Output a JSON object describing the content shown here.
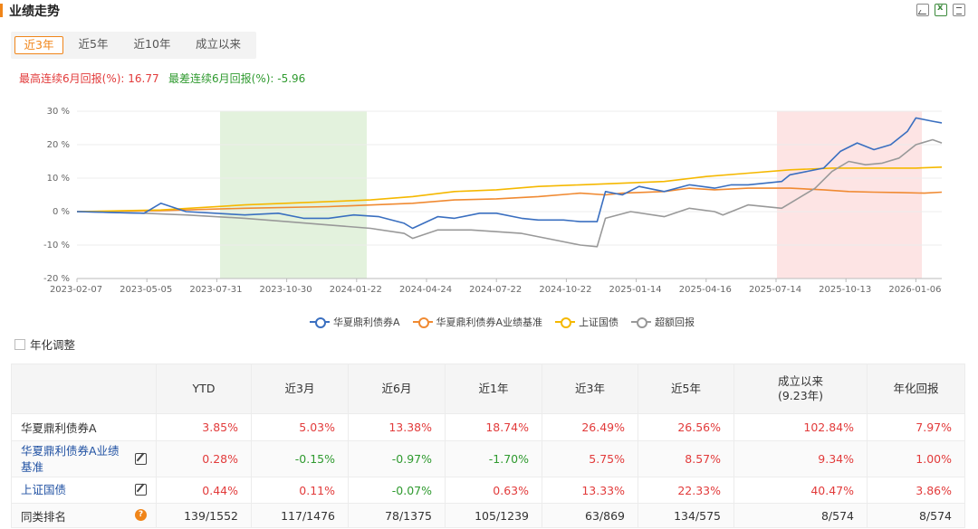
{
  "header": {
    "title": "业绩走势"
  },
  "tabs": [
    {
      "label": "近3年",
      "active": true
    },
    {
      "label": "近5年",
      "active": false
    },
    {
      "label": "近10年",
      "active": false
    },
    {
      "label": "成立以来",
      "active": false
    }
  ],
  "stats": {
    "best": "最高连续6月回报(%): 16.77",
    "worst": "最差连续6月回报(%): -5.96"
  },
  "chart_data": {
    "type": "line",
    "y_ticks": [
      "30 %",
      "20 %",
      "10 %",
      "0 %",
      "-10 %",
      "-20 %"
    ],
    "ylim": [
      -20,
      30
    ],
    "x_ticks": [
      "2023-02-07",
      "2023-05-05",
      "2023-07-31",
      "2023-10-30",
      "2024-01-22",
      "2024-04-24",
      "2024-07-22",
      "2024-10-22",
      "2025-01-14",
      "2025-04-16",
      "2025-07-14",
      "2025-10-13",
      "2026-01-06"
    ],
    "highlight_bands": [
      {
        "from": "2023-07-31",
        "to": "2024-01-22",
        "color": "#e3f2dd"
      },
      {
        "from": "2025-07-14",
        "to": "2025-12-31",
        "color": "#fde4e4"
      }
    ],
    "series": [
      {
        "name": "华夏鼎利债券A",
        "color": "#3a6fc0",
        "points": [
          [
            0,
            0
          ],
          [
            0.08,
            -0.5
          ],
          [
            0.1,
            2.5
          ],
          [
            0.13,
            0
          ],
          [
            0.2,
            -1
          ],
          [
            0.24,
            -0.5
          ],
          [
            0.27,
            -2
          ],
          [
            0.3,
            -2
          ],
          [
            0.33,
            -1
          ],
          [
            0.36,
            -1.5
          ],
          [
            0.39,
            -3.5
          ],
          [
            0.4,
            -5
          ],
          [
            0.43,
            -1.5
          ],
          [
            0.45,
            -2
          ],
          [
            0.48,
            -0.5
          ],
          [
            0.5,
            -0.5
          ],
          [
            0.53,
            -2
          ],
          [
            0.55,
            -2.5
          ],
          [
            0.58,
            -2.5
          ],
          [
            0.6,
            -3
          ],
          [
            0.62,
            -3
          ],
          [
            0.63,
            6
          ],
          [
            0.65,
            5
          ],
          [
            0.67,
            7.5
          ],
          [
            0.7,
            6
          ],
          [
            0.73,
            8
          ],
          [
            0.76,
            7
          ],
          [
            0.78,
            8
          ],
          [
            0.8,
            8
          ],
          [
            0.82,
            8.5
          ],
          [
            0.84,
            9
          ],
          [
            0.85,
            11
          ],
          [
            0.87,
            12
          ],
          [
            0.89,
            13
          ],
          [
            0.91,
            18
          ],
          [
            0.93,
            20.5
          ],
          [
            0.95,
            18.5
          ],
          [
            0.97,
            20
          ],
          [
            0.99,
            24
          ],
          [
            1.0,
            28
          ],
          [
            1.02,
            27
          ],
          [
            1.04,
            26.5
          ]
        ]
      },
      {
        "name": "华夏鼎利债券A业绩基准",
        "color": "#f08a32",
        "points": [
          [
            0,
            0
          ],
          [
            0.1,
            0.3
          ],
          [
            0.2,
            1
          ],
          [
            0.3,
            1.5
          ],
          [
            0.4,
            2.5
          ],
          [
            0.45,
            3.5
          ],
          [
            0.5,
            3.8
          ],
          [
            0.55,
            4.5
          ],
          [
            0.6,
            5.5
          ],
          [
            0.63,
            5
          ],
          [
            0.65,
            5.5
          ],
          [
            0.7,
            6
          ],
          [
            0.73,
            7
          ],
          [
            0.76,
            6.5
          ],
          [
            0.8,
            7
          ],
          [
            0.85,
            7
          ],
          [
            0.89,
            6.5
          ],
          [
            0.92,
            6
          ],
          [
            0.95,
            5.8
          ],
          [
            0.98,
            5.7
          ],
          [
            1.01,
            5.5
          ],
          [
            1.04,
            5.8
          ]
        ]
      },
      {
        "name": "上证国债",
        "color": "#f5b800",
        "points": [
          [
            0,
            0
          ],
          [
            0.1,
            0.5
          ],
          [
            0.2,
            2
          ],
          [
            0.3,
            3
          ],
          [
            0.35,
            3.5
          ],
          [
            0.4,
            4.5
          ],
          [
            0.45,
            6
          ],
          [
            0.5,
            6.5
          ],
          [
            0.55,
            7.5
          ],
          [
            0.6,
            8
          ],
          [
            0.65,
            8.5
          ],
          [
            0.7,
            9
          ],
          [
            0.75,
            10.5
          ],
          [
            0.8,
            11.5
          ],
          [
            0.85,
            12.5
          ],
          [
            0.9,
            13
          ],
          [
            0.95,
            13
          ],
          [
            1.0,
            13
          ],
          [
            1.04,
            13.3
          ]
        ]
      },
      {
        "name": "超额回报",
        "color": "#999999",
        "points": [
          [
            0,
            0
          ],
          [
            0.08,
            -0.5
          ],
          [
            0.13,
            -1
          ],
          [
            0.2,
            -2
          ],
          [
            0.25,
            -3
          ],
          [
            0.3,
            -4
          ],
          [
            0.35,
            -5
          ],
          [
            0.39,
            -6.5
          ],
          [
            0.4,
            -8
          ],
          [
            0.43,
            -5.5
          ],
          [
            0.47,
            -5.5
          ],
          [
            0.5,
            -6
          ],
          [
            0.53,
            -6.5
          ],
          [
            0.56,
            -8
          ],
          [
            0.6,
            -10
          ],
          [
            0.62,
            -10.5
          ],
          [
            0.63,
            -2
          ],
          [
            0.66,
            0
          ],
          [
            0.7,
            -1.5
          ],
          [
            0.73,
            1
          ],
          [
            0.76,
            0
          ],
          [
            0.77,
            -1
          ],
          [
            0.8,
            2
          ],
          [
            0.84,
            1
          ],
          [
            0.86,
            4
          ],
          [
            0.88,
            7
          ],
          [
            0.9,
            12
          ],
          [
            0.92,
            15
          ],
          [
            0.94,
            14
          ],
          [
            0.96,
            14.5
          ],
          [
            0.98,
            16
          ],
          [
            1.0,
            20
          ],
          [
            1.02,
            21.5
          ],
          [
            1.04,
            20.5
          ]
        ]
      }
    ]
  },
  "legend": [
    {
      "name": "华夏鼎利债券A",
      "color": "#3a6fc0"
    },
    {
      "name": "华夏鼎利债券A业绩基准",
      "color": "#f08a32"
    },
    {
      "name": "上证国债",
      "color": "#f5b800"
    },
    {
      "name": "超额回报",
      "color": "#999999"
    }
  ],
  "annualize_label": "年化调整",
  "table": {
    "headers": [
      "",
      "YTD",
      "近3月",
      "近6月",
      "近1年",
      "近3年",
      "近5年",
      "成立以来\n(9.23年)",
      "年化回报"
    ],
    "rows": [
      {
        "name": "华夏鼎利债券A",
        "link": false,
        "icon": "",
        "values": [
          "3.85%",
          "5.03%",
          "13.38%",
          "18.74%",
          "26.49%",
          "26.56%",
          "102.84%",
          "7.97%"
        ],
        "colors": [
          "red",
          "red",
          "red",
          "red",
          "red",
          "red",
          "red",
          "red"
        ]
      },
      {
        "name": "华夏鼎利债券A业绩基准",
        "link": true,
        "icon": "edit",
        "values": [
          "0.28%",
          "-0.15%",
          "-0.97%",
          "-1.70%",
          "5.75%",
          "8.57%",
          "9.34%",
          "1.00%"
        ],
        "colors": [
          "red",
          "green",
          "green",
          "green",
          "red",
          "red",
          "red",
          "red"
        ]
      },
      {
        "name": "上证国债",
        "link": true,
        "icon": "edit",
        "values": [
          "0.44%",
          "0.11%",
          "-0.07%",
          "0.63%",
          "13.33%",
          "22.33%",
          "40.47%",
          "3.86%"
        ],
        "colors": [
          "red",
          "red",
          "green",
          "red",
          "red",
          "red",
          "red",
          "red"
        ]
      },
      {
        "name": "同类排名",
        "link": false,
        "icon": "help",
        "values": [
          "139/1552",
          "117/1476",
          "78/1375",
          "105/1239",
          "63/869",
          "134/575",
          "8/574",
          "8/574"
        ],
        "colors": [
          "dark",
          "dark",
          "dark",
          "dark",
          "dark",
          "dark",
          "dark",
          "dark"
        ]
      }
    ]
  }
}
